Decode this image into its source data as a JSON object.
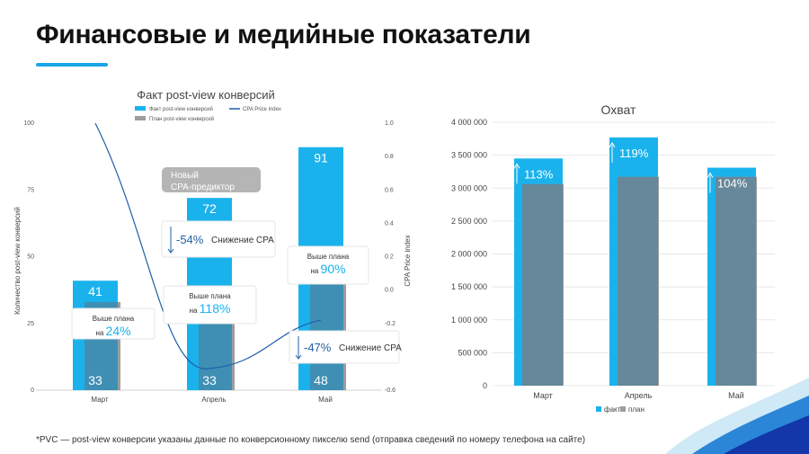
{
  "page": {
    "title": "Финансовые и медийные показатели",
    "footnote": "*PVC — post-view конверсии указаны данные по конверсионному пикселю send (отправка сведений по номеру телефона на сайте)"
  },
  "colors": {
    "fact": "#1ab2ec",
    "plan": "#9d9d9d",
    "overlap": "#3f8fb5",
    "overlap2": "#67879a",
    "line": "#1f5fa8",
    "accent": "#1aa7e8",
    "callout_text": "#333333",
    "highlight": "#1ab2ec",
    "badge": "#b5b5b5"
  },
  "chart_data": [
    {
      "type": "bar",
      "title": "Факт post-view конверсий",
      "categories": [
        "Март",
        "Апрель",
        "Май"
      ],
      "series": [
        {
          "name": "Факт post-view конверсий",
          "values": [
            41,
            72,
            91
          ]
        },
        {
          "name": "План post-view конверсий",
          "values": [
            33,
            33,
            48
          ]
        },
        {
          "name": "CPA Price index",
          "axis": "right",
          "values": [
            1.0,
            -0.47,
            -0.18
          ]
        }
      ],
      "ylabel": "Количество post-view конверсий",
      "ylabel_right": "CPA Price index",
      "ylim": [
        0,
        100
      ],
      "ylim_right": [
        -0.6,
        1.0
      ],
      "yticks": [
        "0",
        "25",
        "50",
        "75",
        "100"
      ],
      "yticks_right": [
        "-0.6",
        "-0.4",
        "-0.2",
        "0.0",
        "0.2",
        "0.4",
        "0.6",
        "0.8",
        "1.0"
      ],
      "legend_position": "top",
      "badge": {
        "line1": "Новый",
        "line2": "CPA-предиктор"
      },
      "callouts": {
        "plan_march": {
          "label": "Выше плана",
          "prefix": "на",
          "value": "24%"
        },
        "plan_april": {
          "label": "Выше плана",
          "prefix": "на",
          "value": "118%"
        },
        "plan_may": {
          "label": "Выше плана",
          "prefix": "на",
          "value": "90%"
        },
        "cpa_april": {
          "value": "-54%",
          "label": "Снижение CPA"
        },
        "cpa_may": {
          "value": "-47%",
          "label": "Снижение CPA"
        }
      }
    },
    {
      "type": "bar",
      "title": "Охват",
      "categories": [
        "Март",
        "Апрель",
        "Май"
      ],
      "series": [
        {
          "name": "факт",
          "values": [
            3450000,
            3770000,
            3310000
          ]
        },
        {
          "name": "план",
          "values": [
            3060000,
            3170000,
            3170000
          ]
        }
      ],
      "ylim": [
        0,
        4000000
      ],
      "yticks": [
        "0",
        "500 000",
        "1 000 000",
        "1 500 000",
        "2 000 000",
        "2 500 000",
        "3 000 000",
        "3 500 000",
        "4 000 000"
      ],
      "bar_labels": [
        "113%",
        "119%",
        "104%"
      ],
      "legend_position": "bottom"
    }
  ]
}
